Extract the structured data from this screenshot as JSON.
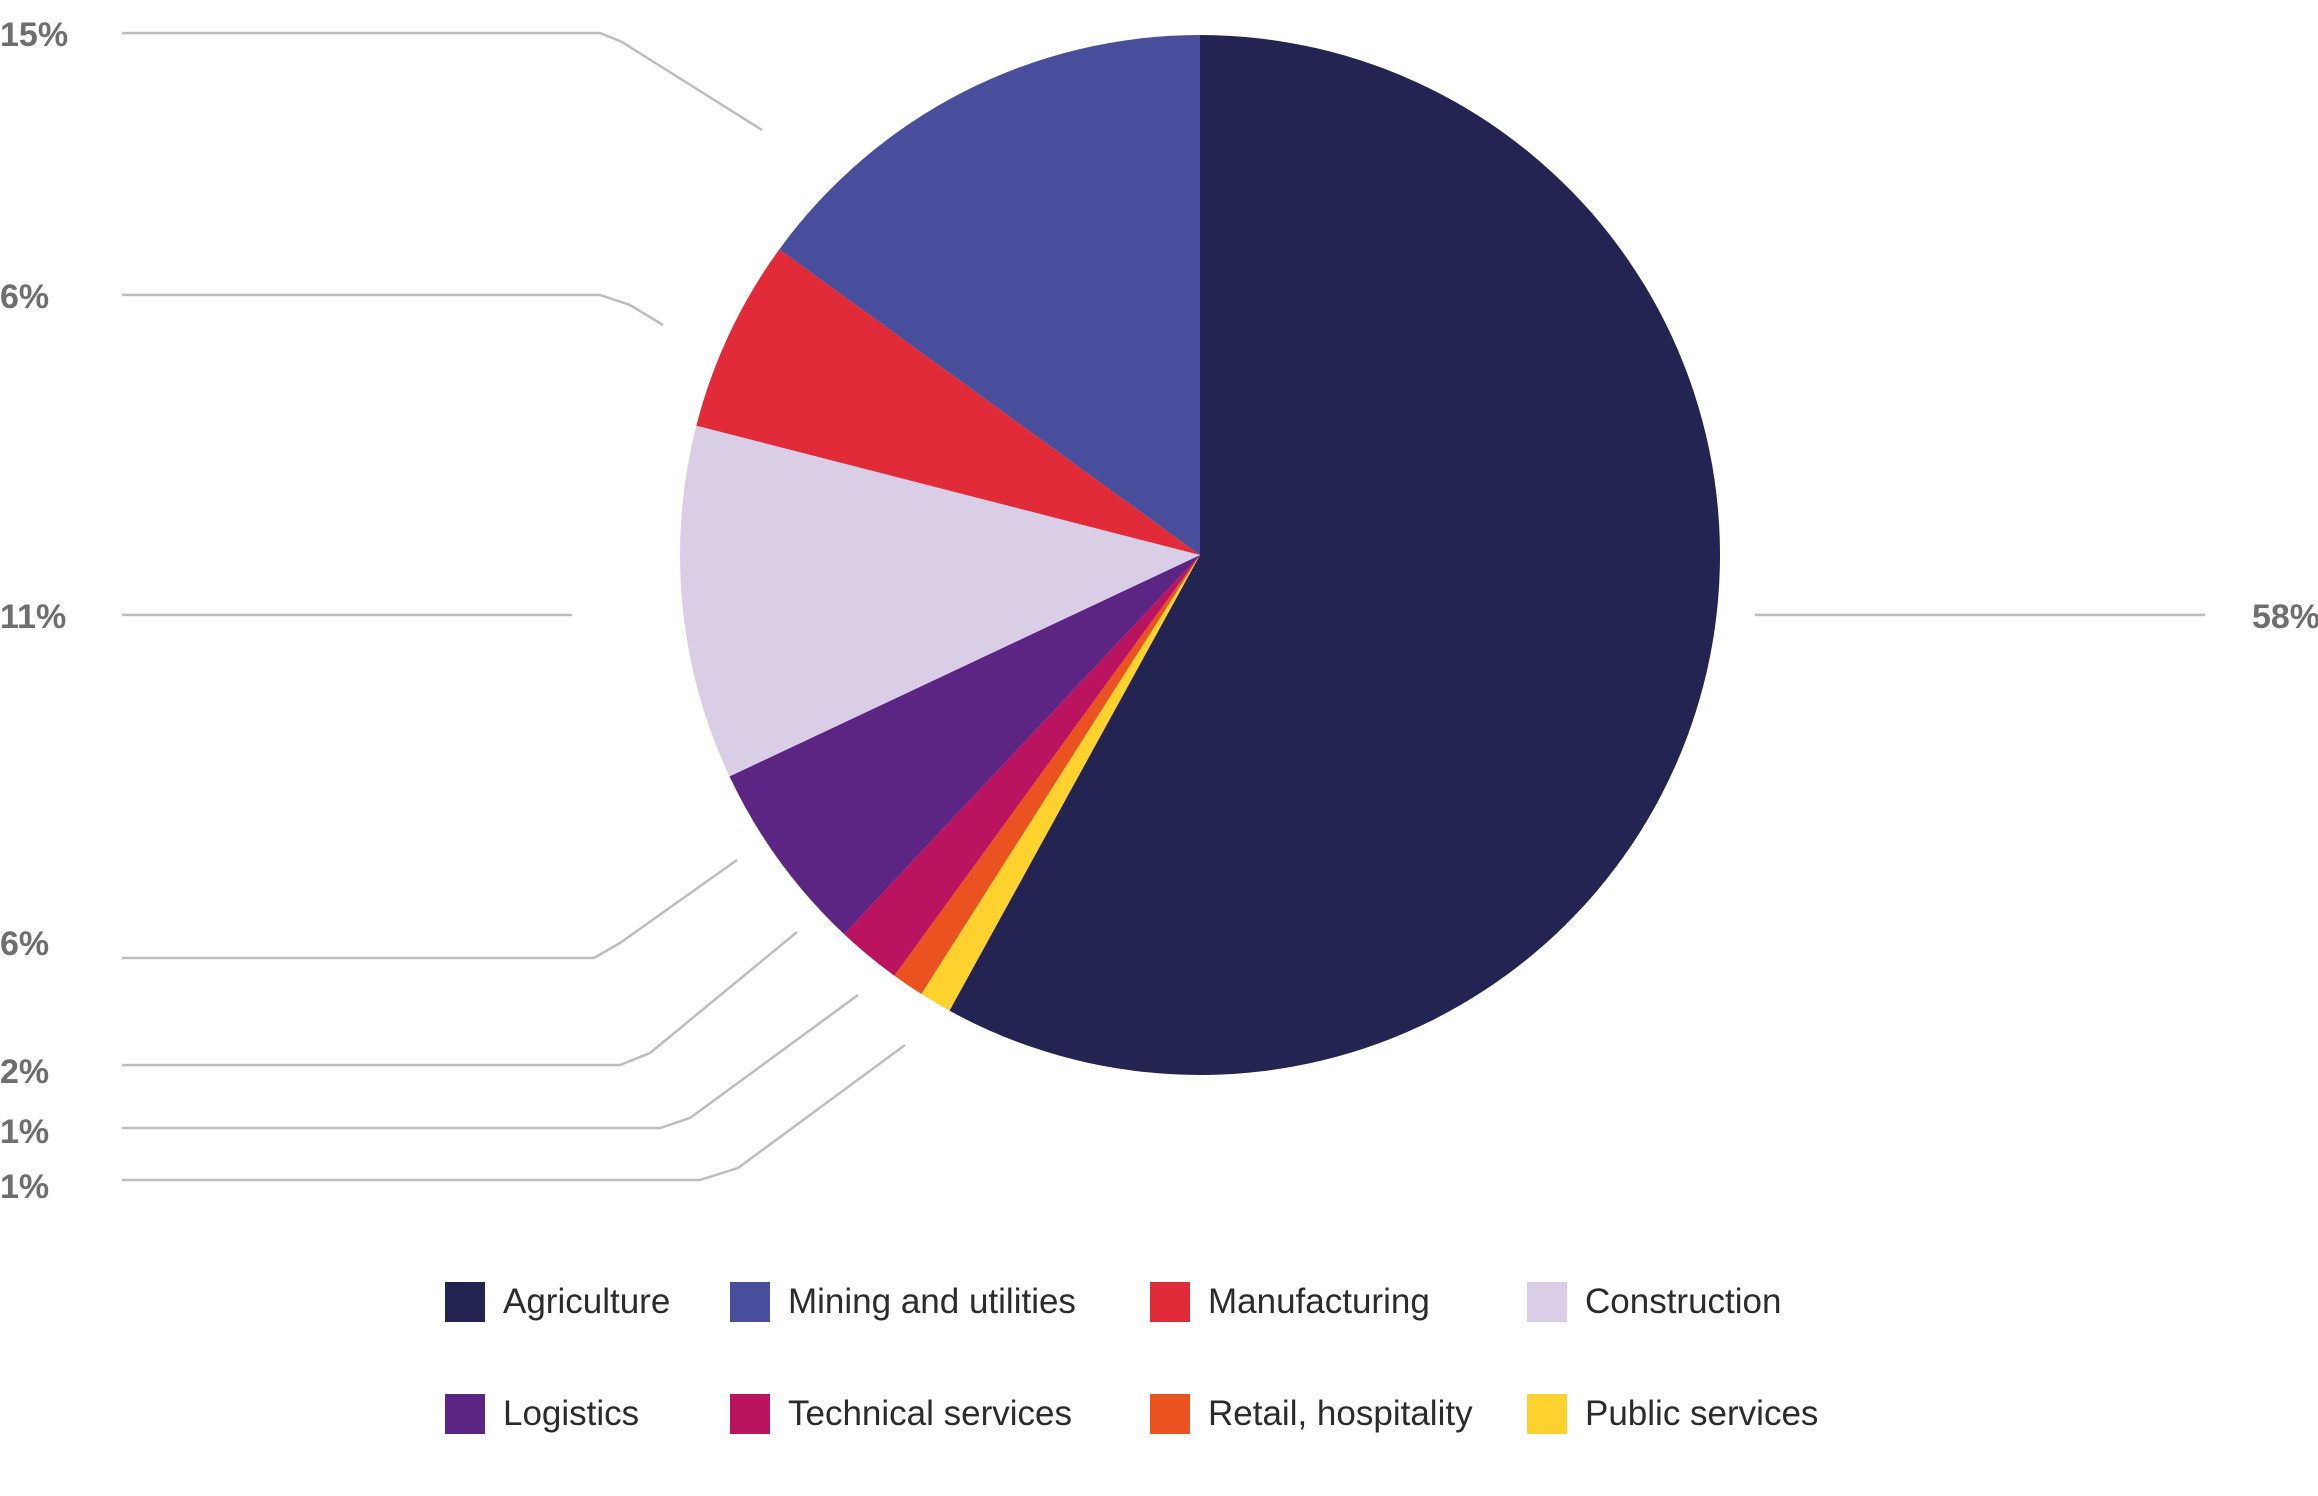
{
  "chart_data": {
    "type": "pie",
    "title": "",
    "start_angle_deg": 0,
    "direction": "clockwise",
    "slices": [
      {
        "name": "Agriculture",
        "value": 58,
        "label": "58%",
        "color": "#232452"
      },
      {
        "name": "Public services",
        "value": 1,
        "label": "1%",
        "color": "#fdd12e"
      },
      {
        "name": "Retail, hospitality",
        "value": 1,
        "label": "1%",
        "color": "#ea5220"
      },
      {
        "name": "Technical services",
        "value": 2,
        "label": "2%",
        "color": "#ba1360"
      },
      {
        "name": "Logistics",
        "value": 6,
        "label": "6%",
        "color": "#5c2483"
      },
      {
        "name": "Construction",
        "value": 11,
        "label": "11%",
        "color": "#dacee6"
      },
      {
        "name": "Manufacturing",
        "value": 6,
        "label": "6%",
        "color": "#e22b39"
      },
      {
        "name": "Mining and utilities",
        "value": 15,
        "label": "15%",
        "color": "#494e9c"
      }
    ],
    "legend": {
      "position": "bottom",
      "rows": [
        [
          "Agriculture",
          "Mining and utilities",
          "Manufacturing",
          "Construction"
        ],
        [
          "Logistics",
          "Technical services",
          "Retail, hospitality",
          "Public services"
        ]
      ]
    }
  }
}
